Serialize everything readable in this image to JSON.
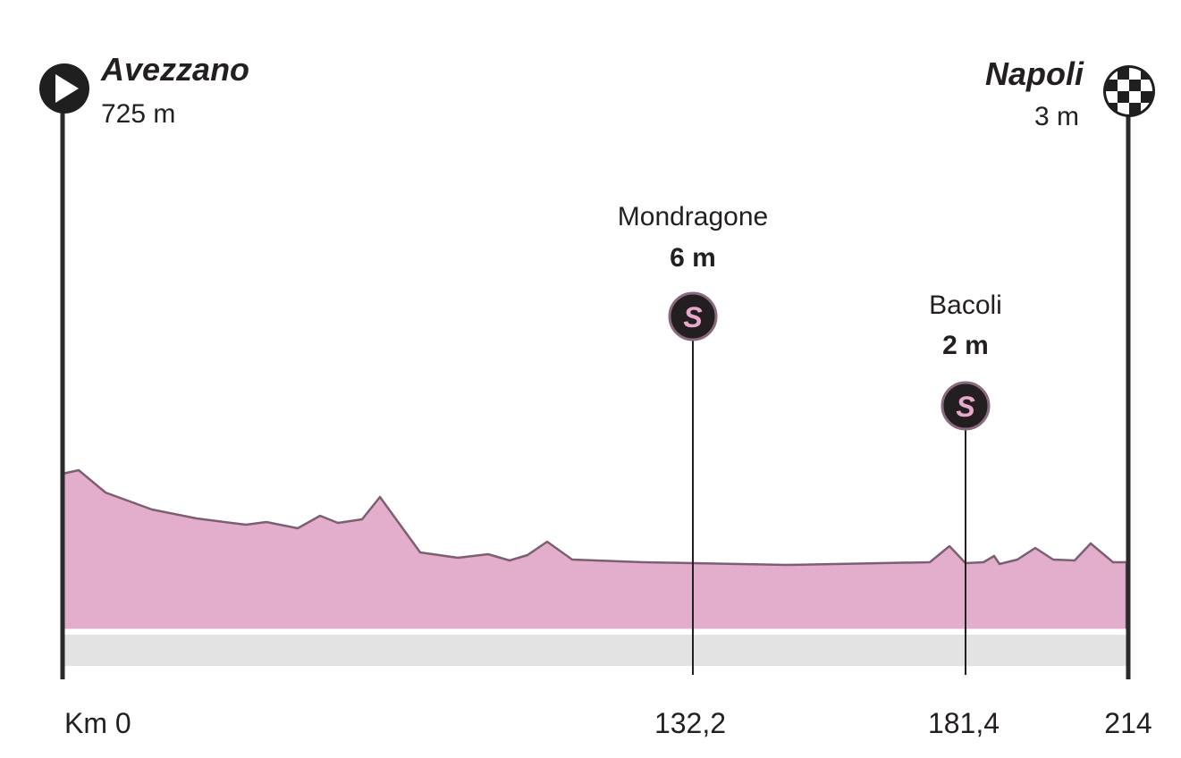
{
  "start": {
    "name": "Avezzano",
    "elevation": "725 m",
    "km": "Km 0"
  },
  "finish": {
    "name": "Napoli",
    "elevation": "3 m",
    "km": "214"
  },
  "sprints": [
    {
      "name": "Mondragone",
      "elevation": "6 m",
      "km": "132,2",
      "icon": "S"
    },
    {
      "name": "Bacoli",
      "elevation": "2 m",
      "km": "181,4",
      "icon": "S"
    }
  ]
}
